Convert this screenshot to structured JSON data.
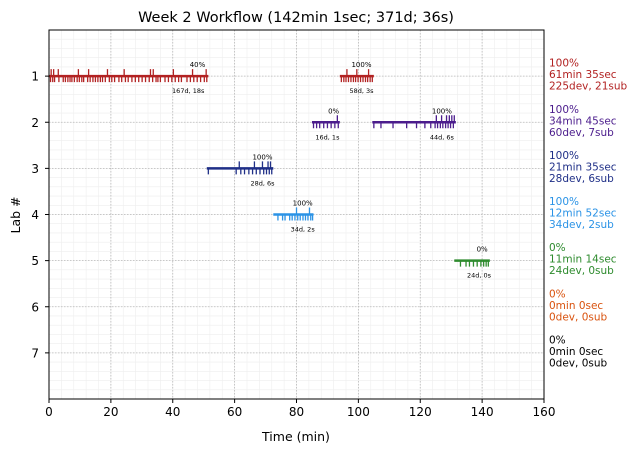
{
  "chart_data": {
    "type": "timeline",
    "title": "Week 2 Workflow (142min 1sec; 371d; 36s)",
    "xlabel": "Time (min)",
    "ylabel": "Lab #",
    "xlim": [
      0,
      160
    ],
    "ylim": [
      8,
      0
    ],
    "xticks": [
      0,
      20,
      40,
      60,
      80,
      100,
      120,
      140,
      160
    ],
    "yticks": [
      1,
      2,
      3,
      4,
      5,
      6,
      7
    ],
    "grid": true,
    "labs": [
      {
        "lab": 1,
        "color": "#b22222",
        "summary": [
          "100%",
          "61min 35sec",
          "225dev, 21sub"
        ],
        "segments": [
          {
            "start": 0,
            "end": 51.5,
            "pct": "40%",
            "pct_x": 48,
            "stat": "167d, 18s",
            "stat_x": 45,
            "dev_ticks": [
              0.5,
              1.2,
              1.8,
              3.2,
              4.6,
              5.3,
              6.1,
              6.8,
              7.4,
              8.2,
              9.1,
              9.8,
              10.6,
              11.2,
              12.5,
              13.3,
              14.2,
              15.0,
              15.8,
              16.6,
              17.3,
              18.2,
              19.5,
              20.3,
              21.2,
              22.6,
              23.5,
              24.7,
              25.6,
              26.8,
              27.9,
              29.0,
              30.1,
              31.2,
              32.4,
              33.5,
              34.6,
              35.2,
              36.0,
              37.5,
              38.6,
              39.7,
              40.8,
              41.9,
              42.8,
              44.6,
              45.7,
              46.8,
              47.9,
              49.0,
              50.2,
              51.0
            ],
            "sub_ticks": [
              0.7,
              1.5,
              3.0,
              9.5,
              12.8,
              18.9,
              24.3,
              32.8,
              33.7,
              40.2,
              46.4,
              50.8
            ]
          },
          {
            "start": 94,
            "end": 105,
            "pct": "100%",
            "pct_x": 101,
            "stat": "58d, 3s",
            "stat_x": 101,
            "dev_ticks": [
              94.5,
              95.3,
              96.0,
              96.8,
              97.6,
              98.4,
              99.1,
              99.9,
              100.7,
              101.5,
              102.3,
              103.0,
              103.8,
              104.5
            ],
            "sub_ticks": [
              96.3,
              99.5,
              103.3
            ]
          }
        ]
      },
      {
        "lab": 2,
        "color": "#4b1c8c",
        "summary": [
          "100%",
          "34min 45sec",
          "60dev, 7sub"
        ],
        "segments": [
          {
            "start": 85,
            "end": 94,
            "pct": "0%",
            "pct_x": 92,
            "stat": "16d, 1s",
            "stat_x": 90,
            "dev_ticks": [
              85.5,
              86.5,
              87.5,
              88.8,
              90.0,
              91.2,
              92.4,
              93.5
            ],
            "sub_ticks": [
              93.2
            ]
          },
          {
            "start": 104.5,
            "end": 131.5,
            "pct": "100%",
            "pct_x": 127,
            "stat": "44d, 6s",
            "stat_x": 127,
            "dev_ticks": [
              105.0,
              107.3,
              111.2,
              115.6,
              118.8,
              121.5,
              123.4,
              124.8,
              125.6,
              126.5,
              127.3,
              128.2,
              129.0,
              129.8,
              130.7
            ],
            "sub_ticks": [
              125.2,
              126.9,
              128.5,
              129.4,
              130.2,
              131.0
            ]
          }
        ]
      },
      {
        "lab": 3,
        "color": "#1f2f87",
        "summary": [
          "100%",
          "21min 35sec",
          "28dev, 6sub"
        ],
        "segments": [
          {
            "start": 51,
            "end": 72.5,
            "pct": "100%",
            "pct_x": 69,
            "stat": "28d, 6s",
            "stat_x": 69,
            "dev_ticks": [
              51.5,
              60.5,
              62.0,
              63.2,
              64.6,
              65.8,
              67.0,
              68.2,
              69.4,
              70.3,
              71.2,
              72.0
            ],
            "sub_ticks": [
              61.5,
              66.4,
              69.0,
              70.8,
              71.6
            ]
          }
        ]
      },
      {
        "lab": 4,
        "color": "#2b93e6",
        "summary": [
          "100%",
          "12min 52sec",
          "34dev, 2sub"
        ],
        "segments": [
          {
            "start": 72.5,
            "end": 85.5,
            "pct": "100%",
            "pct_x": 82,
            "stat": "34d, 2s",
            "stat_x": 82,
            "dev_ticks": [
              74.0,
              75.5,
              76.3,
              77.8,
              78.6,
              79.5,
              80.4,
              81.2,
              82.1,
              82.9,
              83.7,
              84.6,
              85.2
            ],
            "sub_ticks": [
              80.0,
              84.2
            ]
          }
        ]
      },
      {
        "lab": 5,
        "color": "#2e8b2e",
        "summary": [
          "0%",
          "11min 14sec",
          "24dev, 0sub"
        ],
        "segments": [
          {
            "start": 131,
            "end": 142.5,
            "pct": "0%",
            "pct_x": 140,
            "stat": "24d, 0s",
            "stat_x": 139,
            "dev_ticks": [
              133.0,
              134.8,
              135.9,
              137.2,
              138.4,
              139.6,
              140.5,
              141.3,
              142.0
            ],
            "sub_ticks": []
          }
        ]
      },
      {
        "lab": 6,
        "color": "#d9530f",
        "summary": [
          "0%",
          "0min 0sec",
          "0dev, 0sub"
        ],
        "segments": []
      },
      {
        "lab": 7,
        "color": "#000000",
        "summary": [
          "0%",
          "0min 0sec",
          "0dev, 0sub"
        ],
        "segments": []
      }
    ]
  }
}
